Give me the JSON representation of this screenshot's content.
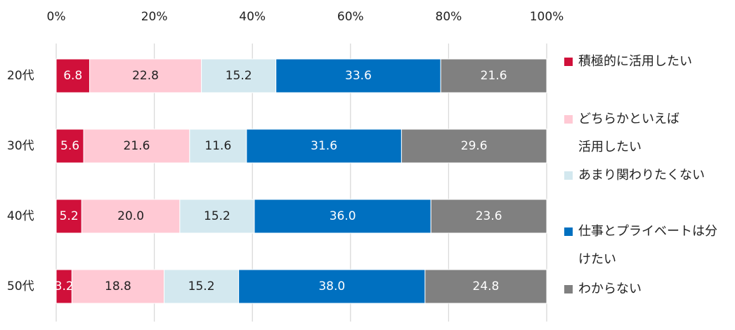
{
  "chart_data": {
    "type": "stacked_barh",
    "categories": [
      "20代",
      "30代",
      "40代",
      "50代"
    ],
    "series": [
      {
        "name": "積極的に活用したい",
        "color": "#d0103a",
        "values": [
          6.8,
          5.6,
          5.2,
          3.2
        ],
        "value_labels": [
          "6.8",
          "5.6",
          "5.2",
          "3.2"
        ]
      },
      {
        "name": "どちらかといえば活用したい",
        "color": "#ffc9d4",
        "values": [
          22.8,
          21.6,
          20.0,
          18.8
        ],
        "value_labels": [
          "22.8",
          "21.6",
          "20.0",
          "18.8"
        ]
      },
      {
        "name": "あまり関わりたくない",
        "color": "#d3e8ef",
        "values": [
          15.2,
          11.6,
          15.2,
          15.2
        ],
        "value_labels": [
          "15.2",
          "11.6",
          "15.2",
          "15.2"
        ]
      },
      {
        "name": "仕事とプライベートは分けたい",
        "color": "#0070c0",
        "values": [
          33.6,
          31.6,
          36.0,
          38.0
        ],
        "value_labels": [
          "33.6",
          "31.6",
          "36.0",
          "38.0"
        ]
      },
      {
        "name": "わからない",
        "color": "#808080",
        "values": [
          21.6,
          29.6,
          23.6,
          24.8
        ],
        "value_labels": [
          "21.6",
          "29.6",
          "23.6",
          "24.8"
        ]
      }
    ],
    "xlim": [
      0,
      100
    ],
    "xticks": [
      {
        "value": 0,
        "label": "0%"
      },
      {
        "value": 20,
        "label": "20%"
      },
      {
        "value": 40,
        "label": "40%"
      },
      {
        "value": 60,
        "label": "60%"
      },
      {
        "value": 80,
        "label": "80%"
      },
      {
        "value": 100,
        "label": "100%"
      }
    ],
    "grid": true
  }
}
